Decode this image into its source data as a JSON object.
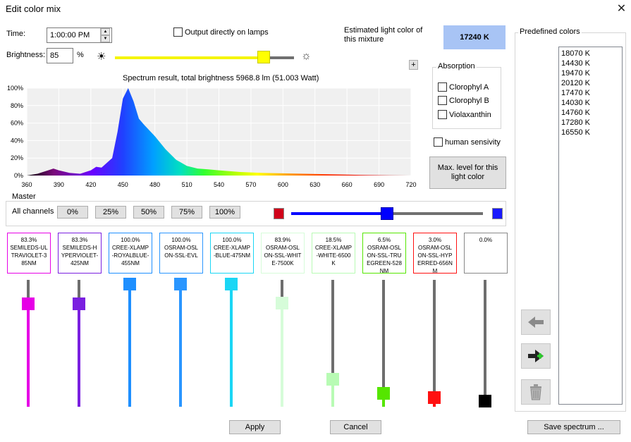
{
  "window": {
    "title": "Edit color mix"
  },
  "time": {
    "label": "Time:",
    "value": "1:00:00 PM"
  },
  "output_checkbox": {
    "label": "Output directly on lamps",
    "checked": false
  },
  "estimated": {
    "label": "Estimated light color of this mixture",
    "value": "17240 K",
    "color": "#a8c4f5"
  },
  "brightness": {
    "label": "Brightness:",
    "value": "85",
    "unit": "%",
    "slider_fraction": 0.83
  },
  "plus_label": "+",
  "spectrum": {
    "title": "Spectrum result, total brightness 5968.8 lm (51.003 Watt)",
    "y_ticks": [
      "100%",
      "80%",
      "60%",
      "40%",
      "20%",
      "0%"
    ],
    "x_ticks": [
      "360",
      "390",
      "420",
      "450",
      "480",
      "510",
      "540",
      "570",
      "600",
      "630",
      "660",
      "690",
      "720"
    ]
  },
  "chart_data": {
    "type": "area",
    "title": "Spectrum result, total brightness 5968.8 lm (51.003 Watt)",
    "xlim": [
      360,
      720
    ],
    "ylim": [
      0,
      100
    ],
    "x": [
      360,
      370,
      380,
      385,
      390,
      400,
      410,
      420,
      425,
      430,
      440,
      445,
      450,
      455,
      460,
      465,
      470,
      480,
      490,
      500,
      510,
      520,
      530,
      540,
      560,
      580,
      600,
      620,
      640,
      660,
      680,
      700,
      720
    ],
    "y": [
      0,
      2,
      6,
      8,
      6,
      3,
      2,
      6,
      10,
      9,
      20,
      50,
      88,
      100,
      85,
      65,
      58,
      45,
      30,
      18,
      11,
      8,
      7,
      6,
      4,
      3,
      2.5,
      2,
      1.5,
      1,
      0.5,
      0.2,
      0
    ]
  },
  "absorption": {
    "label": "Absorption",
    "items": [
      {
        "label": "Clorophyl A",
        "checked": false
      },
      {
        "label": "Clorophyl B",
        "checked": false
      },
      {
        "label": "Violaxanthin",
        "checked": false
      }
    ]
  },
  "human_sensivity": {
    "label": "human sensivity",
    "checked": false
  },
  "max_level_button": "Max. level for this light color",
  "master": {
    "label": "Master",
    "all_channels_label": "All channels",
    "presets": [
      "0%",
      "25%",
      "50%",
      "75%",
      "100%"
    ],
    "slider_fraction": 0.5,
    "left_color": "#d0021b",
    "right_color": "#1a1aff"
  },
  "channels": [
    {
      "pct": "83.3%",
      "name": "SEMILEDS-ULTRAVIOLET-385NM",
      "color": "#e600e6",
      "level": 0.833
    },
    {
      "pct": "83.3%",
      "name": "SEMILEDS-HYPERVIOLET-425NM",
      "color": "#7a1fe0",
      "level": 0.833
    },
    {
      "pct": "100.0%",
      "name": "CREE-XLAMP-ROYALBLUE-455NM",
      "color": "#1e8fff",
      "level": 1.0
    },
    {
      "pct": "100.0%",
      "name": "OSRAM-OSLON-SSL-EVL",
      "color": "#2a96ff",
      "level": 1.0
    },
    {
      "pct": "100.0%",
      "name": "CREE-XLAMP-BLUE-475NM",
      "color": "#1ad6f5",
      "level": 1.0
    },
    {
      "pct": "83.9%",
      "name": "OSRAM-OSLON-SSL-WHITE-7500K",
      "color": "#d6fcd9",
      "level": 0.839
    },
    {
      "pct": "18.5%",
      "name": "CREE-XLAMP-WHITE-6500K",
      "color": "#b8fbb4",
      "level": 0.185
    },
    {
      "pct": "6.5%",
      "name": "OSRAM-OSLON-SSL-TRUEGREEN-528NM",
      "color": "#55e600",
      "level": 0.065
    },
    {
      "pct": "3.0%",
      "name": "OSRAM-OSLON-SSL-HYPERRED-656NM",
      "color": "#ff1010",
      "level": 0.03
    },
    {
      "pct": "0.0%",
      "name": "",
      "color": "#000000",
      "level": 0.0
    }
  ],
  "predefined": {
    "label": "Predefined colors",
    "items": [
      "18070 K",
      "14430 K",
      "19470 K",
      "20120 K",
      "17470 K",
      "14030 K",
      "14760 K",
      "17280 K",
      "16550 K"
    ]
  },
  "icons": {
    "left": "arrow-left-icon",
    "add": "arrow-add-icon",
    "trash": "trash-icon"
  },
  "buttons": {
    "apply": "Apply",
    "cancel": "Cancel",
    "save_spectrum": "Save spectrum ..."
  }
}
